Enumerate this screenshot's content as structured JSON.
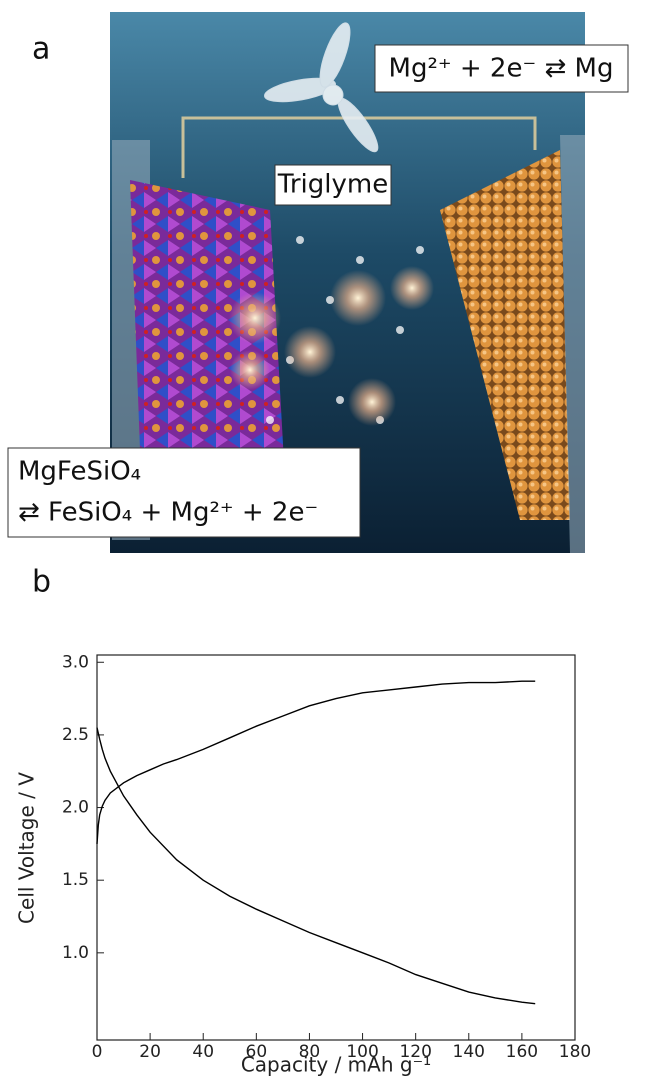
{
  "panel_a": {
    "letter": "a",
    "reaction_top": "Mg²⁺ + 2e⁻ ⇄ Mg",
    "electrolyte": "Triglyme",
    "cathode_line1": "MgFeSiO₄",
    "cathode_line2": "⇄ FeSiO₄ + Mg²⁺ + 2e⁻"
  },
  "chart_data": {
    "type": "line",
    "panel_letter": "b",
    "x_label": "Capacity / mAh g⁻¹",
    "y_label": "Cell Voltage / V",
    "xlim": [
      0,
      180
    ],
    "ylim": [
      0.4,
      3.05
    ],
    "xticks": [
      0,
      20,
      40,
      60,
      80,
      100,
      120,
      140,
      160,
      180
    ],
    "yticks": [
      {
        "value": 1,
        "label": "1.0"
      },
      {
        "value": 1.5,
        "label": "1.5"
      },
      {
        "value": 2,
        "label": "2.0"
      },
      {
        "value": 2.5,
        "label": "2.5"
      },
      {
        "value": 3,
        "label": "3.0"
      }
    ],
    "series": [
      {
        "color": "#000000",
        "x": [
          0,
          0.5,
          1,
          2,
          3,
          5,
          10,
          15,
          20,
          25,
          30,
          40,
          50,
          60,
          70,
          80,
          90,
          100,
          110,
          120,
          130,
          140,
          150,
          160,
          165
        ],
        "values": [
          1.75,
          1.88,
          1.95,
          2.01,
          2.05,
          2.1,
          2.17,
          2.22,
          2.26,
          2.3,
          2.33,
          2.4,
          2.48,
          2.56,
          2.63,
          2.7,
          2.75,
          2.79,
          2.81,
          2.83,
          2.85,
          2.86,
          2.86,
          2.87,
          2.87
        ]
      },
      {
        "color": "#000000",
        "x": [
          0,
          1,
          2,
          3,
          5,
          10,
          15,
          20,
          30,
          40,
          50,
          60,
          70,
          80,
          90,
          100,
          110,
          120,
          130,
          140,
          150,
          160,
          165
        ],
        "values": [
          2.55,
          2.47,
          2.4,
          2.34,
          2.25,
          2.08,
          1.95,
          1.83,
          1.64,
          1.5,
          1.39,
          1.3,
          1.22,
          1.14,
          1.07,
          1.0,
          0.93,
          0.85,
          0.79,
          0.73,
          0.69,
          0.66,
          0.65
        ]
      }
    ]
  }
}
